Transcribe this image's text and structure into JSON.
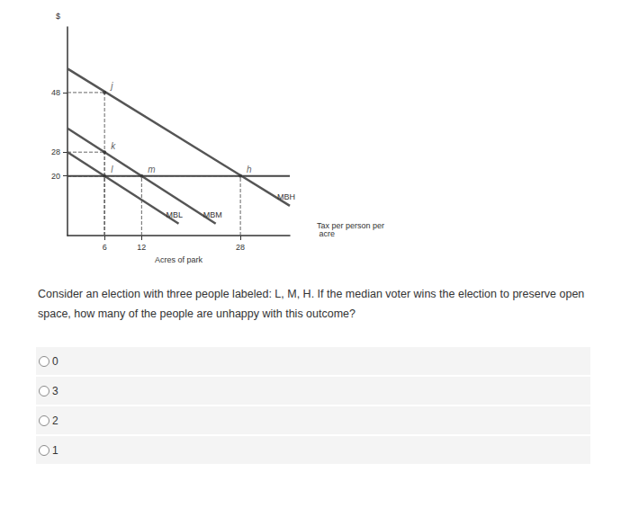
{
  "chart_data": {
    "type": "line",
    "x_label": "Acres of park",
    "y_label": "$",
    "xlim": [
      0,
      36
    ],
    "xticks": [
      6,
      12,
      28
    ],
    "ylim": [
      0,
      70
    ],
    "yticks": [
      20,
      28,
      48
    ],
    "grid": false,
    "series": [
      {
        "name": "MBL",
        "color": "#555555",
        "x": [
          0,
          18
        ],
        "values": [
          28,
          4
        ]
      },
      {
        "name": "MBM",
        "color": "#555555",
        "x": [
          0,
          24
        ],
        "values": [
          36,
          4
        ]
      },
      {
        "name": "MBH",
        "color": "#555555",
        "x": [
          0,
          36
        ],
        "values": [
          56,
          10
        ]
      },
      {
        "name": "Tax per person per acre",
        "color": "#444444",
        "x": [
          0,
          36
        ],
        "values": [
          20,
          20
        ]
      }
    ],
    "points": {
      "labels": [
        "j",
        "k",
        "l",
        "m",
        "h"
      ],
      "x": [
        6,
        6,
        6,
        12,
        28
      ],
      "y": [
        48,
        28,
        20,
        20,
        20
      ]
    }
  },
  "question": "Consider an election with three people labeled: L, M, H. If the median voter wins the election to preserve open space, how many of the people are unhappy with this outcome?",
  "options": [
    "0",
    "3",
    "2",
    "1"
  ]
}
